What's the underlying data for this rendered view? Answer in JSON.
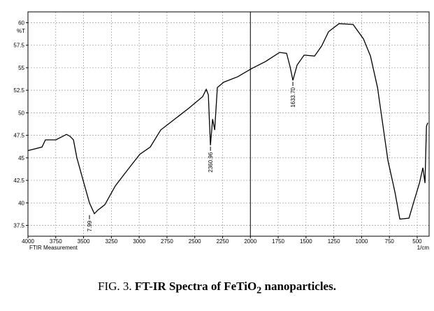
{
  "chart_data": {
    "type": "line",
    "y_label": "%T",
    "x_label": "1/cm",
    "instrument_label": "FTIR Measurement",
    "x": [
      4000,
      3874,
      3843,
      3749,
      3654,
      3623,
      3591,
      3560,
      3497,
      3447,
      3403,
      3371,
      3309,
      3214,
      3089,
      2994,
      2900,
      2806,
      2680,
      2554,
      2429,
      2397,
      2378,
      2359,
      2340,
      2321,
      2297,
      2240,
      2114,
      1989,
      1863,
      1737,
      1674,
      1643,
      1618,
      1580,
      1517,
      1423,
      1360,
      1297,
      1203,
      1077,
      983,
      920,
      857,
      807,
      763,
      700,
      656,
      574,
      524,
      480,
      449,
      430,
      417,
      405
    ],
    "series": [
      {
        "color": "#000000",
        "values": [
          45.8,
          46.2,
          47.0,
          47.0,
          47.6,
          47.4,
          47.0,
          45.0,
          42.2,
          40.0,
          38.8,
          39.2,
          39.8,
          41.9,
          43.9,
          45.4,
          46.2,
          48.1,
          49.3,
          50.5,
          51.8,
          52.6,
          52.0,
          46.4,
          49.3,
          48.1,
          52.8,
          53.4,
          54.0,
          54.9,
          55.7,
          56.7,
          56.6,
          55.1,
          53.6,
          55.3,
          56.4,
          56.3,
          57.4,
          59.0,
          59.9,
          59.8,
          58.2,
          56.3,
          52.8,
          48.5,
          44.7,
          41.2,
          38.2,
          38.3,
          40.4,
          42.2,
          43.9,
          42.2,
          48.5,
          48.9
        ]
      }
    ],
    "xlim": [
      4000,
      393
    ],
    "ylim": [
      36.3,
      61.2
    ],
    "xticks": [
      4000,
      3750,
      3500,
      3250,
      3000,
      2750,
      2500,
      2250,
      2000,
      1750,
      1500,
      1250,
      1000,
      750,
      500
    ],
    "yticks": [
      37.5,
      40,
      42.5,
      45,
      47.5,
      50,
      52.5,
      55,
      57.5,
      60
    ],
    "grid": true,
    "divider_x": 2000,
    "annotations": [
      {
        "label": "7.99",
        "x": 3447,
        "y": 38.8
      },
      {
        "label": "2360.96",
        "x": 2359,
        "y": 46.4
      },
      {
        "label": "1633.70",
        "x": 1618,
        "y": 53.6
      }
    ]
  },
  "caption": {
    "prefix": "FIG. 3.",
    "bold": "FT-IR Spectra of FeTiO",
    "sub": "2",
    "suffix": "nanoparticles."
  }
}
